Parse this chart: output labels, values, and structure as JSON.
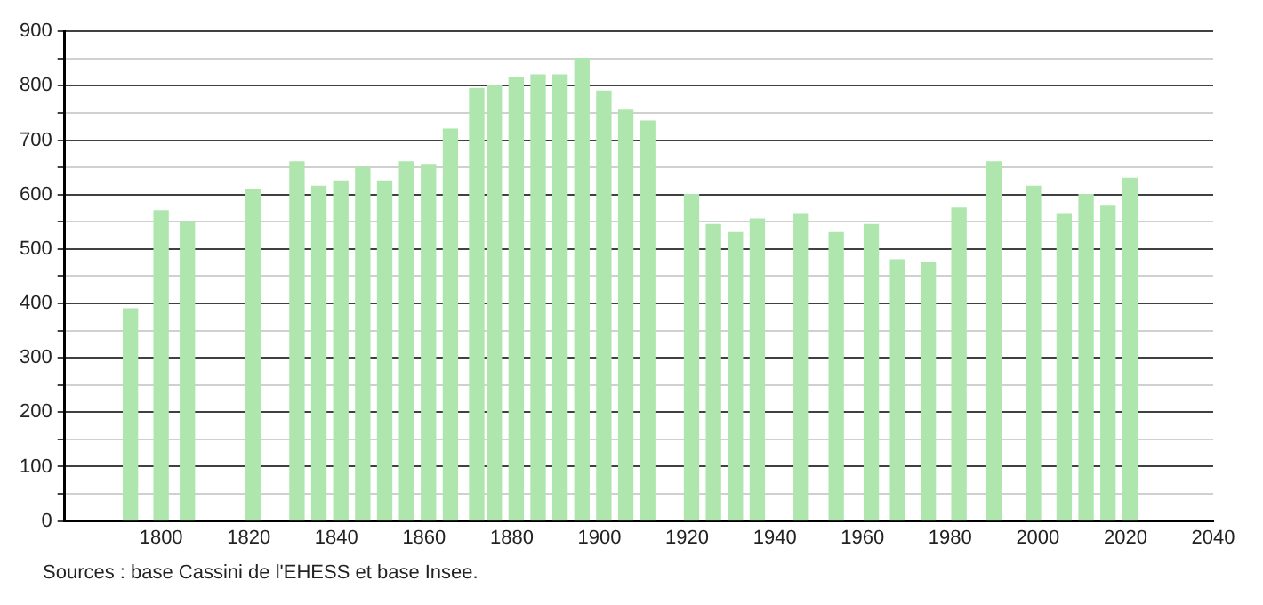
{
  "chart_data": {
    "type": "bar",
    "x": [
      1793,
      1800,
      1806,
      1821,
      1831,
      1836,
      1841,
      1846,
      1851,
      1856,
      1861,
      1866,
      1872,
      1876,
      1881,
      1886,
      1891,
      1896,
      1901,
      1906,
      1911,
      1921,
      1926,
      1931,
      1936,
      1946,
      1954,
      1962,
      1968,
      1975,
      1982,
      1990,
      1999,
      2006,
      2011,
      2016,
      2021
    ],
    "values": [
      390,
      570,
      550,
      610,
      660,
      615,
      625,
      650,
      625,
      660,
      655,
      720,
      795,
      800,
      815,
      820,
      820,
      850,
      790,
      755,
      735,
      600,
      545,
      530,
      555,
      565,
      530,
      545,
      480,
      475,
      575,
      660,
      615,
      565,
      600,
      580,
      630
    ],
    "color": "#aee6ae",
    "xlim": [
      1778,
      2040
    ],
    "xticks": [
      1800,
      1820,
      1840,
      1860,
      1880,
      1900,
      1920,
      1940,
      1960,
      1980,
      2000,
      2020,
      2040
    ],
    "ylim": [
      0,
      900
    ],
    "yticks": [
      0,
      {
        "value": 50,
        "label": null
      },
      100,
      {
        "value": 150,
        "label": null
      },
      200,
      {
        "value": 250,
        "label": null
      },
      300,
      {
        "value": 350,
        "label": null
      },
      400,
      {
        "value": 450,
        "label": null
      },
      500,
      {
        "value": 550,
        "label": null
      },
      600,
      {
        "value": 650,
        "label": null
      },
      700,
      {
        "value": 750,
        "label": null
      },
      800,
      {
        "value": 850,
        "label": null
      },
      900
    ],
    "grid": "y",
    "legend": false,
    "annotations": [
      "Sources : base Cassini de l'EHESS et base Insee."
    ]
  }
}
